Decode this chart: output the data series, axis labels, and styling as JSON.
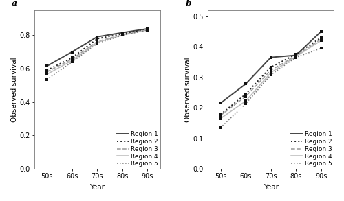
{
  "x_labels": [
    "50s",
    "60s",
    "70s",
    "80s",
    "90s"
  ],
  "x_vals": [
    0,
    1,
    2,
    3,
    4
  ],
  "panel_a": {
    "title": "a",
    "ylabel": "Observed survival",
    "xlabel": "Year",
    "ylim": [
      0.0,
      0.95
    ],
    "yticks": [
      0.0,
      0.2,
      0.4,
      0.6,
      0.8
    ],
    "regions": [
      {
        "name": "Region 1",
        "color": "#444444",
        "linestyle": "solid",
        "linewidth": 1.4,
        "values": [
          0.615,
          0.7,
          0.79,
          0.815,
          0.838
        ]
      },
      {
        "name": "Region 2",
        "color": "#222222",
        "linestyle": "dotted",
        "linewidth": 1.4,
        "values": [
          0.59,
          0.665,
          0.778,
          0.808,
          0.835
        ]
      },
      {
        "name": "Region 3",
        "color": "#999999",
        "linestyle": "dashed",
        "linewidth": 1.1,
        "values": [
          0.58,
          0.657,
          0.762,
          0.802,
          0.832
        ]
      },
      {
        "name": "Region 4",
        "color": "#bbbbbb",
        "linestyle": "solid",
        "linewidth": 1.1,
        "values": [
          0.566,
          0.648,
          0.757,
          0.8,
          0.831
        ]
      },
      {
        "name": "Region 5",
        "color": "#777777",
        "linestyle": "dotted",
        "linewidth": 1.1,
        "values": [
          0.535,
          0.64,
          0.75,
          0.799,
          0.83
        ]
      }
    ]
  },
  "panel_b": {
    "title": "b",
    "ylabel": "Observed survival",
    "xlabel": "Year",
    "ylim": [
      0.0,
      0.52
    ],
    "yticks": [
      0.0,
      0.1,
      0.2,
      0.3,
      0.4,
      0.5
    ],
    "regions": [
      {
        "name": "Region 1",
        "color": "#444444",
        "linestyle": "solid",
        "linewidth": 1.4,
        "values": [
          0.215,
          0.278,
          0.365,
          0.372,
          0.45
        ]
      },
      {
        "name": "Region 2",
        "color": "#222222",
        "linestyle": "dotted",
        "linewidth": 1.4,
        "values": [
          0.178,
          0.245,
          0.333,
          0.375,
          0.43
        ]
      },
      {
        "name": "Region 3",
        "color": "#999999",
        "linestyle": "dashed",
        "linewidth": 1.1,
        "values": [
          0.175,
          0.237,
          0.323,
          0.37,
          0.425
        ]
      },
      {
        "name": "Region 4",
        "color": "#bbbbbb",
        "linestyle": "solid",
        "linewidth": 1.1,
        "values": [
          0.165,
          0.222,
          0.315,
          0.368,
          0.42
        ]
      },
      {
        "name": "Region 5",
        "color": "#777777",
        "linestyle": "dotted",
        "linewidth": 1.1,
        "values": [
          0.135,
          0.213,
          0.308,
          0.365,
          0.395
        ]
      }
    ]
  },
  "marker": "s",
  "markersize": 3.2,
  "markercolor": "#111111",
  "background_color": "#ffffff",
  "legend_fontsize": 6.5,
  "axis_fontsize": 7.5,
  "tick_fontsize": 7.0
}
